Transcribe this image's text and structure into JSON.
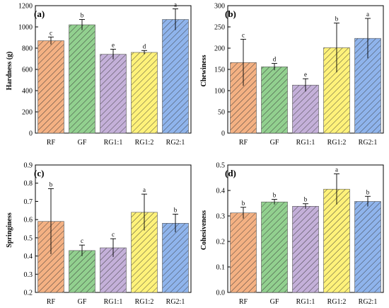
{
  "colors": {
    "RF": "#f4b183",
    "GF": "#92d08f",
    "RG1:1": "#c4b0d9",
    "RG1:2": "#fff27a",
    "RG2:1": "#8fb4ec",
    "hatch": "#333333",
    "axis": "#000000"
  },
  "chart_data": [
    {
      "type": "bar",
      "panel": "(a)",
      "ylabel": "Hardness (g)",
      "categories": [
        "RF",
        "GF",
        "RG1:1",
        "RG1:2",
        "RG2:1"
      ],
      "values": [
        870,
        1020,
        742,
        760,
        1070
      ],
      "errors": [
        35,
        50,
        48,
        18,
        100
      ],
      "letters": [
        "c",
        "b",
        "e",
        "d",
        "a"
      ],
      "ylim": [
        0,
        1200
      ],
      "yticks": [
        0,
        200,
        400,
        600,
        800,
        1000,
        1200
      ]
    },
    {
      "type": "bar",
      "panel": "(b)",
      "ylabel": "Chewiness",
      "categories": [
        "RF",
        "GF",
        "RG1:1",
        "RG1:2",
        "RG2:1"
      ],
      "values": [
        166,
        156,
        113,
        201,
        223
      ],
      "errors": [
        55,
        8,
        15,
        58,
        47
      ],
      "letters": [
        "c",
        "d",
        "e",
        "b",
        "a"
      ],
      "ylim": [
        0,
        300
      ],
      "yticks": [
        0,
        50,
        100,
        150,
        200,
        250,
        300
      ]
    },
    {
      "type": "bar",
      "panel": "(c)",
      "ylabel": "Springiness",
      "categories": [
        "RF",
        "GF",
        "RG1:1",
        "RG1:2",
        "RG2:1"
      ],
      "values": [
        0.59,
        0.43,
        0.445,
        0.64,
        0.58
      ],
      "errors": [
        0.18,
        0.03,
        0.05,
        0.1,
        0.05
      ],
      "letters": [
        "b",
        "c",
        "c",
        "a",
        "b"
      ],
      "ylim": [
        0.2,
        0.9
      ],
      "yticks": [
        0.2,
        0.3,
        0.4,
        0.5,
        0.6,
        0.7,
        0.8,
        0.9
      ],
      "ytick_labels": [
        "0.2",
        "0.3",
        "0.4",
        "0.5",
        "0.6",
        "0.7",
        "0.8",
        "0.9"
      ]
    },
    {
      "type": "bar",
      "panel": "(d)",
      "ylabel": "Cohesiveness",
      "categories": [
        "RF",
        "GF",
        "RG1:1",
        "RG1:2",
        "RG2:1"
      ],
      "values": [
        0.312,
        0.355,
        0.338,
        0.405,
        0.357
      ],
      "errors": [
        0.022,
        0.01,
        0.01,
        0.06,
        0.02
      ],
      "letters": [
        "b",
        "b",
        "b",
        "a",
        "b"
      ],
      "ylim": [
        0,
        0.5
      ],
      "yticks": [
        0,
        0.1,
        0.2,
        0.3,
        0.4,
        0.5
      ],
      "ytick_labels": [
        "0.0",
        "0.1",
        "0.2",
        "0.3",
        "0.4",
        "0.5"
      ]
    }
  ]
}
